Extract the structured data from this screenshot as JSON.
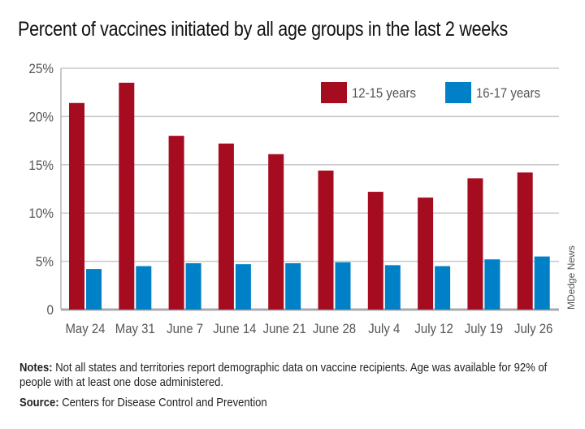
{
  "chart_data": {
    "type": "bar",
    "title": "Percent of vaccines initiated by all age groups in the last 2 weeks",
    "categories": [
      "May 24",
      "May 31",
      "June 7",
      "June 14",
      "June 21",
      "June 28",
      "July 4",
      "July 12",
      "July 19",
      "July 26"
    ],
    "series": [
      {
        "name": "12-15 years",
        "color": "#a50c20",
        "values": [
          21.4,
          23.5,
          18.0,
          17.2,
          16.1,
          14.4,
          12.2,
          11.6,
          13.6,
          14.2
        ]
      },
      {
        "name": "16-17 years",
        "color": "#0080c6",
        "values": [
          4.2,
          4.5,
          4.8,
          4.7,
          4.8,
          4.9,
          4.6,
          4.5,
          5.2,
          5.5
        ]
      }
    ],
    "yticks": [
      "0",
      "5%",
      "10%",
      "15%",
      "20%",
      "25%"
    ],
    "ylim": [
      0,
      25
    ],
    "xlabel": "",
    "ylabel": "",
    "grid": true,
    "legend": "top-right"
  },
  "credit": "MDedge News",
  "notes": {
    "label": "Notes:",
    "text": " Not all states and territories report demographic data on vaccine recipients. Age was available for 92% of people with at least one dose administered."
  },
  "source": {
    "label": "Source:",
    "text": " Centers for Disease Control and Prevention"
  }
}
